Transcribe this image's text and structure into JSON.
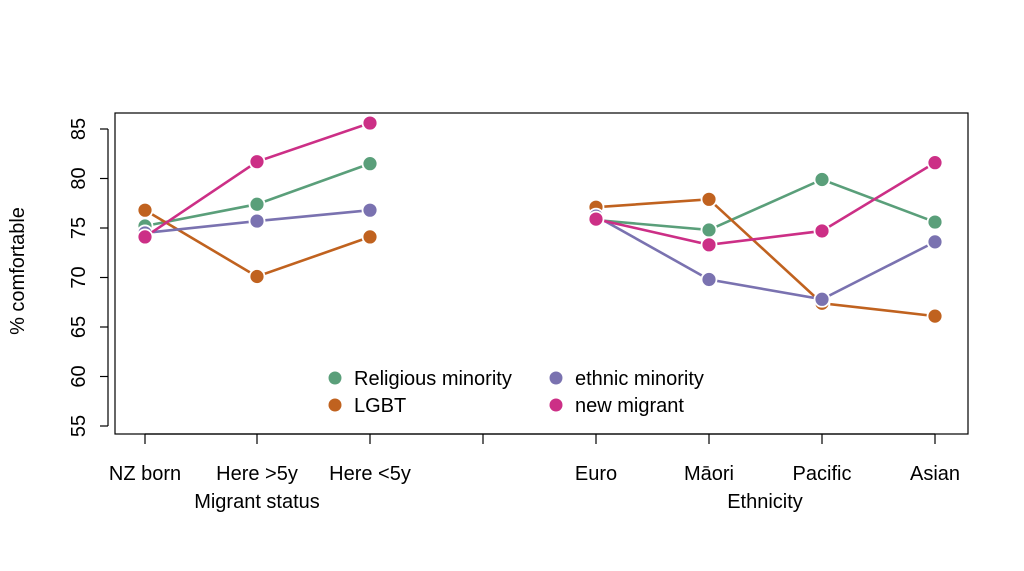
{
  "chart_data": {
    "type": "line",
    "title": "",
    "ylabel": "% comfortable",
    "ylim": [
      55,
      85
    ],
    "yticks": [
      55,
      60,
      65,
      70,
      75,
      80,
      85
    ],
    "grid": false,
    "legend_position": "bottom-center",
    "groups": [
      {
        "name": "Migrant status",
        "categories": [
          "NZ born",
          "Here >5y",
          "Here <5y"
        ]
      },
      {
        "name": "Ethnicity",
        "categories": [
          "Euro",
          "Māori",
          "Pacific",
          "Asian"
        ]
      }
    ],
    "series": [
      {
        "name": "Religious minority",
        "color": "#5a9f7a",
        "migrant": [
          75.2,
          77.4,
          81.5
        ],
        "ethnicity": [
          75.8,
          74.8,
          79.9,
          75.6
        ]
      },
      {
        "name": "LGBT",
        "color": "#c0621f",
        "migrant": [
          76.8,
          70.1,
          74.1
        ],
        "ethnicity": [
          77.1,
          77.9,
          67.4,
          66.1
        ]
      },
      {
        "name": "ethnic minority",
        "color": "#7a72b0",
        "migrant": [
          74.5,
          75.7,
          76.8
        ],
        "ethnicity": [
          76.2,
          69.8,
          67.8,
          73.6
        ]
      },
      {
        "name": "new migrant",
        "color": "#cc2f86",
        "migrant": [
          74.1,
          81.7,
          85.6
        ],
        "ethnicity": [
          75.9,
          73.3,
          74.7,
          81.6
        ]
      }
    ]
  }
}
